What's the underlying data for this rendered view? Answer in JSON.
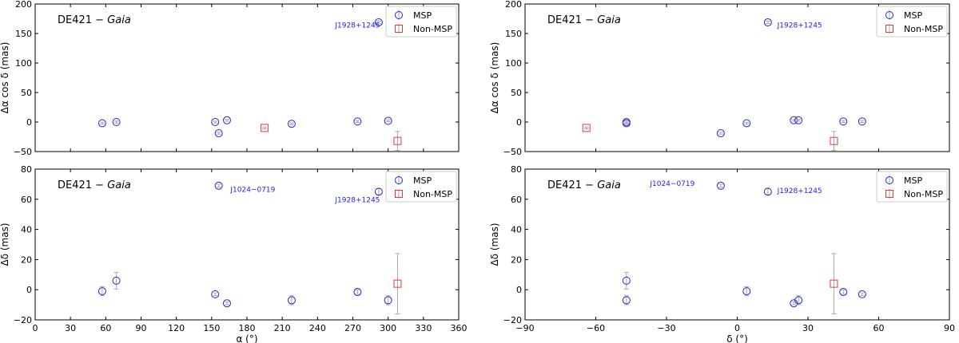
{
  "chart_data": [
    {
      "type": "scatter",
      "id": "p0",
      "title_prefix": "DE421 − ",
      "title_italic": "Gaia",
      "xlabel": "",
      "ylabel": "Δα cos δ (mas)",
      "xlim": [
        0,
        360
      ],
      "ylim": [
        -50,
        200
      ],
      "xticks": [
        0,
        30,
        60,
        90,
        120,
        150,
        180,
        210,
        240,
        270,
        300,
        330,
        360
      ],
      "xtick_labels": [],
      "yticks": [
        -50,
        0,
        50,
        100,
        150,
        200
      ],
      "ytick_labels": [
        "−50",
        "0",
        "50",
        "100",
        "150",
        "200"
      ],
      "legend": [
        {
          "name": "MSP",
          "color": "#2424d6",
          "marker": "circle"
        },
        {
          "name": "Non-MSP",
          "color": "#e53a3a",
          "marker": "square"
        }
      ],
      "series": [
        {
          "name": "MSP",
          "marker": "circle",
          "color": "#2424d6",
          "points": [
            {
              "x": 57,
              "y": -2,
              "err": 1.5
            },
            {
              "x": 69,
              "y": 0,
              "err": 1.5
            },
            {
              "x": 153,
              "y": 0,
              "err": 1.5
            },
            {
              "x": 156,
              "y": -19,
              "err": 1.5
            },
            {
              "x": 163,
              "y": 3,
              "err": 1.5
            },
            {
              "x": 218,
              "y": -3,
              "err": 1.5
            },
            {
              "x": 274,
              "y": 1,
              "err": 1.5
            },
            {
              "x": 292,
              "y": 169,
              "err": 2
            },
            {
              "x": 300,
              "y": 2,
              "err": 1.5
            }
          ]
        },
        {
          "name": "Non-MSP",
          "marker": "square",
          "color": "#e53a3a",
          "points": [
            {
              "x": 195,
              "y": -10,
              "err": 1.5
            },
            {
              "x": 308,
              "y": -32,
              "err": 16
            }
          ]
        }
      ],
      "annotations": [
        {
          "text": "J1928+1245",
          "x": 255,
          "y": 160
        }
      ]
    },
    {
      "type": "scatter",
      "id": "p1",
      "title_prefix": "DE421 − ",
      "title_italic": "Gaia",
      "xlabel": "",
      "ylabel": "Δα cos δ (mas)",
      "xlim": [
        -90,
        90
      ],
      "ylim": [
        -50,
        200
      ],
      "xticks": [
        -90,
        -60,
        -30,
        0,
        30,
        60,
        90
      ],
      "xtick_labels": [],
      "yticks": [
        -50,
        0,
        50,
        100,
        150,
        200
      ],
      "ytick_labels": [
        "−50",
        "0",
        "50",
        "100",
        "150",
        "200"
      ],
      "legend": [
        {
          "name": "MSP",
          "color": "#2424d6",
          "marker": "circle"
        },
        {
          "name": "Non-MSP",
          "color": "#e53a3a",
          "marker": "square"
        }
      ],
      "series": [
        {
          "name": "MSP",
          "marker": "circle",
          "color": "#2424d6",
          "points": [
            {
              "x": -47,
              "y": 0,
              "err": 1.5
            },
            {
              "x": -47,
              "y": -2,
              "err": 1.5
            },
            {
              "x": -7,
              "y": -19,
              "err": 1.5
            },
            {
              "x": 4,
              "y": -2,
              "err": 1.5
            },
            {
              "x": 13,
              "y": 169,
              "err": 2
            },
            {
              "x": 24,
              "y": 3,
              "err": 1.5
            },
            {
              "x": 26,
              "y": 3,
              "err": 1.5
            },
            {
              "x": 45,
              "y": 1,
              "err": 1.5
            },
            {
              "x": 53,
              "y": 1,
              "err": 1.5
            }
          ]
        },
        {
          "name": "Non-MSP",
          "marker": "square",
          "color": "#e53a3a",
          "points": [
            {
              "x": -64,
              "y": -10,
              "err": 1.5
            },
            {
              "x": 41,
              "y": -32,
              "err": 16
            }
          ]
        }
      ],
      "annotations": [
        {
          "text": "J1928+1245",
          "x": 17,
          "y": 160
        }
      ]
    },
    {
      "type": "scatter",
      "id": "p2",
      "title_prefix": "DE421 − ",
      "title_italic": "Gaia",
      "xlabel": "α (°)",
      "ylabel": "Δδ (mas)",
      "xlim": [
        0,
        360
      ],
      "ylim": [
        -20,
        80
      ],
      "xticks": [
        0,
        30,
        60,
        90,
        120,
        150,
        180,
        210,
        240,
        270,
        300,
        330,
        360
      ],
      "xtick_labels": [
        "0",
        "30",
        "60",
        "90",
        "120",
        "150",
        "180",
        "210",
        "240",
        "270",
        "300",
        "330",
        "360"
      ],
      "yticks": [
        -20,
        0,
        20,
        40,
        60,
        80
      ],
      "ytick_labels": [
        "−20",
        "0",
        "20",
        "40",
        "60",
        "80"
      ],
      "legend": [
        {
          "name": "MSP",
          "color": "#2424d6",
          "marker": "circle"
        },
        {
          "name": "Non-MSP",
          "color": "#e53a3a",
          "marker": "square"
        }
      ],
      "series": [
        {
          "name": "MSP",
          "marker": "circle",
          "color": "#2424d6",
          "points": [
            {
              "x": 57,
              "y": -1,
              "err": 3
            },
            {
              "x": 69,
              "y": 6,
              "err": 5.5
            },
            {
              "x": 153,
              "y": -3,
              "err": 1
            },
            {
              "x": 156,
              "y": 69,
              "err": 1
            },
            {
              "x": 163,
              "y": -9,
              "err": 1
            },
            {
              "x": 218,
              "y": -7,
              "err": 3
            },
            {
              "x": 274,
              "y": -1.5,
              "err": 1.5
            },
            {
              "x": 292,
              "y": 65,
              "err": 2
            },
            {
              "x": 300,
              "y": -7,
              "err": 3
            }
          ]
        },
        {
          "name": "Non-MSP",
          "marker": "square",
          "color": "#e53a3a",
          "points": [
            {
              "x": 308,
              "y": 4,
              "err": 20
            }
          ]
        }
      ],
      "annotations": [
        {
          "text": "J1024−0719",
          "x": 166,
          "y": 65
        },
        {
          "text": "J1928+1245",
          "x": 255,
          "y": 58
        }
      ]
    },
    {
      "type": "scatter",
      "id": "p3",
      "title_prefix": "DE421 − ",
      "title_italic": "Gaia",
      "xlabel": "δ (°)",
      "ylabel": "Δδ (mas)",
      "xlim": [
        -90,
        90
      ],
      "ylim": [
        -20,
        80
      ],
      "xticks": [
        -90,
        -60,
        -30,
        0,
        30,
        60,
        90
      ],
      "xtick_labels": [
        "−90",
        "−60",
        "−30",
        "0",
        "30",
        "60",
        "90"
      ],
      "yticks": [
        -20,
        0,
        20,
        40,
        60,
        80
      ],
      "ytick_labels": [
        "−20",
        "0",
        "20",
        "40",
        "60",
        "80"
      ],
      "legend": [
        {
          "name": "MSP",
          "color": "#2424d6",
          "marker": "circle"
        },
        {
          "name": "Non-MSP",
          "color": "#e53a3a",
          "marker": "square"
        }
      ],
      "series": [
        {
          "name": "MSP",
          "marker": "circle",
          "color": "#2424d6",
          "points": [
            {
              "x": -47,
              "y": 6,
              "err": 5.5
            },
            {
              "x": -47,
              "y": -7,
              "err": 3
            },
            {
              "x": -7,
              "y": 69,
              "err": 1
            },
            {
              "x": 4,
              "y": -1,
              "err": 3
            },
            {
              "x": 13,
              "y": 65,
              "err": 2
            },
            {
              "x": 24,
              "y": -9,
              "err": 1
            },
            {
              "x": 26,
              "y": -7,
              "err": 3
            },
            {
              "x": 45,
              "y": -1.5,
              "err": 1.5
            },
            {
              "x": 53,
              "y": -3,
              "err": 1
            }
          ]
        },
        {
          "name": "Non-MSP",
          "marker": "square",
          "color": "#e53a3a",
          "points": [
            {
              "x": 41,
              "y": 4,
              "err": 20
            }
          ]
        }
      ],
      "annotations": [
        {
          "text": "J1024−0719",
          "x": -37,
          "y": 69
        },
        {
          "text": "J1928+1245",
          "x": 17,
          "y": 64
        }
      ]
    }
  ]
}
